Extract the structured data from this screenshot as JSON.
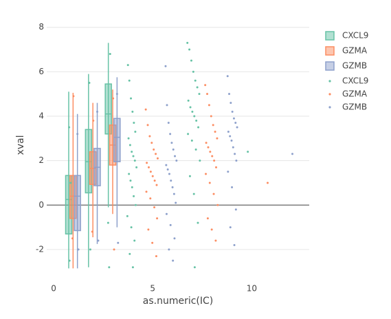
{
  "chart_data": [
    {
      "type": "box",
      "x_label": "as.numeric(IC)",
      "y_label": "xval",
      "xlim": [
        -0.35,
        12.9
      ],
      "ylim": [
        -2.9,
        8.3
      ],
      "xticks": [
        0,
        5,
        10
      ],
      "yticks": [
        -2,
        0,
        2,
        4,
        6,
        8
      ],
      "grid": true,
      "zeroline": true,
      "legend": "right",
      "series": [
        {
          "name": "CXCL9",
          "color": "#66c2a5",
          "x": [
            0.76,
            1.76,
            2.76
          ],
          "q1": [
            -1.3,
            0.55,
            3.2
          ],
          "median": [
            0.25,
            1.95,
            4.1
          ],
          "q3": [
            1.33,
            3.4,
            5.45
          ],
          "min": [
            -2.85,
            -2.8,
            -0.1
          ],
          "max": [
            5.1,
            5.9,
            7.3
          ]
        },
        {
          "name": "GZMA",
          "color": "#fc8d62",
          "x": [
            0.98,
            1.98,
            2.98
          ],
          "q1": [
            -0.6,
            0.93,
            1.8
          ],
          "median": [
            0.4,
            1.65,
            2.7
          ],
          "q3": [
            1.33,
            2.4,
            3.6
          ],
          "min": [
            -2.85,
            -1.45,
            -0.4
          ],
          "max": [
            5.05,
            4.6,
            5.2
          ]
        },
        {
          "name": "GZMB",
          "color": "#8da0cb",
          "x": [
            1.2,
            2.2,
            3.2
          ],
          "q1": [
            -1.15,
            0.87,
            1.95
          ],
          "median": [
            0.4,
            1.7,
            3.05
          ],
          "q3": [
            1.33,
            2.55,
            3.9
          ],
          "min": [
            -2.85,
            -1.75,
            -1.0
          ],
          "max": [
            4.1,
            4.6,
            5.75
          ]
        }
      ]
    },
    {
      "type": "scatter",
      "series": [
        {
          "name": "CXCL9",
          "color": "#66c2a5",
          "x": [
            3.75,
            3.82,
            3.9,
            3.98,
            4.05,
            4.12,
            3.78,
            3.86,
            3.94,
            4.02,
            4.1,
            4.18,
            3.8,
            3.88,
            3.96,
            4.04,
            4.14,
            3.72,
            3.92,
            4.08,
            3.84,
            4.0,
            6.75,
            6.85,
            6.95,
            7.05,
            7.15,
            7.25,
            7.35,
            6.8,
            6.9,
            7.0,
            7.1,
            7.2,
            7.3,
            6.78,
            6.98,
            7.18,
            7.38,
            6.88,
            7.08,
            7.28,
            7.12,
            9.8,
            0.8,
            0.85,
            0.78,
            1.8,
            1.85,
            2.8,
            2.85,
            2.75
          ],
          "values": [
            6.3,
            5.6,
            4.8,
            4.2,
            3.7,
            3.3,
            3.0,
            2.7,
            2.4,
            2.2,
            2.0,
            1.7,
            1.4,
            1.1,
            0.8,
            0.4,
            0.0,
            -0.5,
            -1.0,
            -1.6,
            -2.2,
            -2.8,
            7.3,
            7.0,
            6.5,
            6.0,
            5.6,
            5.3,
            5.0,
            4.7,
            4.4,
            4.2,
            4.0,
            3.8,
            3.5,
            3.2,
            2.9,
            2.5,
            2.0,
            1.3,
            0.5,
            -0.8,
            -2.8,
            2.4,
            -2.5,
            1.0,
            3.5,
            5.5,
            -2.0,
            -2.8,
            6.8,
            -0.8
          ]
        },
        {
          "name": "GZMA",
          "color": "#fc8d62",
          "x": [
            4.65,
            4.75,
            4.85,
            4.95,
            5.05,
            5.15,
            5.25,
            4.7,
            4.8,
            4.9,
            5.0,
            5.1,
            5.2,
            4.68,
            4.88,
            5.08,
            5.22,
            4.78,
            4.98,
            5.18,
            7.65,
            7.75,
            7.85,
            7.95,
            8.05,
            8.15,
            8.25,
            7.7,
            7.8,
            7.9,
            8.0,
            8.1,
            8.2,
            7.68,
            7.88,
            8.08,
            8.28,
            7.78,
            7.98,
            8.18,
            10.8,
            1.0,
            0.95,
            2.0,
            1.95,
            3.0,
            3.05
          ],
          "values": [
            4.3,
            3.6,
            3.1,
            2.8,
            2.5,
            2.3,
            2.1,
            1.9,
            1.7,
            1.5,
            1.3,
            1.1,
            0.9,
            0.6,
            0.3,
            -0.1,
            -0.6,
            -1.1,
            -1.7,
            -2.3,
            5.4,
            5.0,
            4.5,
            4.0,
            3.6,
            3.3,
            3.0,
            2.8,
            2.6,
            2.4,
            2.2,
            2.0,
            1.7,
            1.4,
            1.0,
            0.5,
            0.0,
            -0.6,
            -1.1,
            -1.6,
            1.0,
            4.9,
            -1.5,
            3.8,
            -1.2,
            4.8,
            -2.0
          ]
        },
        {
          "name": "GZMB",
          "color": "#8da0cb",
          "x": [
            5.65,
            5.72,
            5.8,
            5.88,
            5.96,
            6.04,
            6.12,
            6.2,
            5.68,
            5.76,
            5.84,
            5.92,
            6.0,
            6.08,
            6.16,
            5.7,
            5.9,
            6.1,
            5.82,
            6.02,
            8.78,
            8.86,
            8.94,
            9.02,
            9.1,
            9.18,
            9.26,
            8.82,
            8.9,
            8.98,
            9.06,
            9.14,
            9.22,
            8.8,
            9.0,
            9.2,
            8.92,
            9.12,
            12.05,
            1.2,
            1.25,
            2.2,
            2.25,
            3.2,
            3.25
          ],
          "values": [
            6.25,
            4.5,
            3.7,
            3.2,
            2.8,
            2.5,
            2.2,
            2.0,
            1.8,
            1.6,
            1.4,
            1.1,
            0.8,
            0.5,
            0.1,
            -0.4,
            -0.9,
            -1.5,
            -2.0,
            -2.5,
            5.8,
            5.0,
            4.6,
            4.2,
            3.9,
            3.7,
            3.5,
            3.3,
            3.1,
            2.9,
            2.6,
            2.3,
            2.0,
            1.5,
            0.8,
            -0.2,
            -1.0,
            -1.8,
            2.3,
            3.2,
            -2.0,
            4.2,
            -1.6,
            5.0,
            -1.7
          ]
        }
      ]
    }
  ]
}
